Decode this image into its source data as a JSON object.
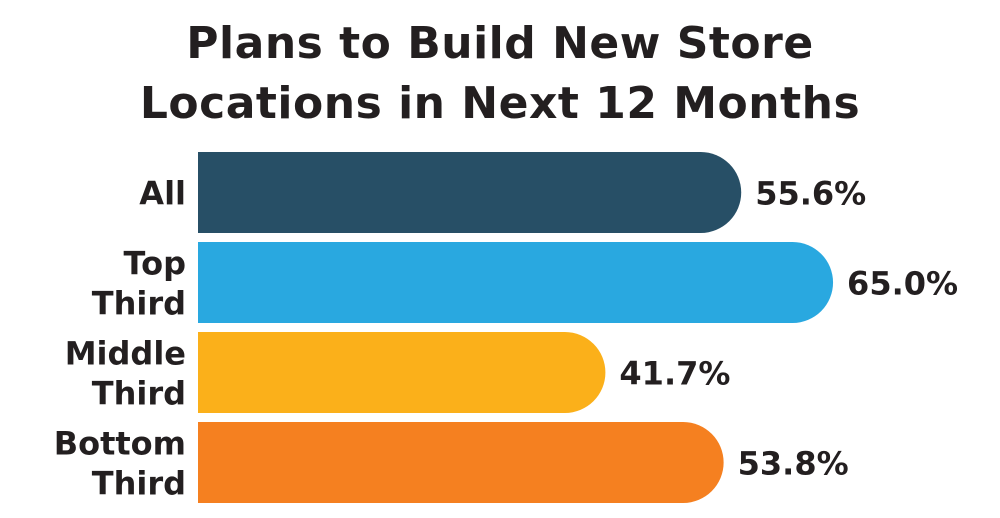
{
  "chart_data": {
    "type": "bar",
    "orientation": "horizontal",
    "title": "Plans to Build New Store Locations in Next 12 Months",
    "title_lines": [
      "Plans to Build New Store",
      "Locations in Next 12 Months"
    ],
    "categories": [
      "All",
      "Top Third",
      "Middle Third",
      "Bottom Third"
    ],
    "category_lines": [
      [
        "All"
      ],
      [
        "Top",
        "Third"
      ],
      [
        "Middle",
        "Third"
      ],
      [
        "Bottom",
        "Third"
      ]
    ],
    "values": [
      55.6,
      65.0,
      41.7,
      53.8
    ],
    "value_labels": [
      "55.6%",
      "65.0%",
      "41.7%",
      "53.8%"
    ],
    "unit": "%",
    "colors": [
      "#274f66",
      "#29a8e0",
      "#fbb01a",
      "#f58020"
    ],
    "grid": false,
    "legend": "none"
  }
}
